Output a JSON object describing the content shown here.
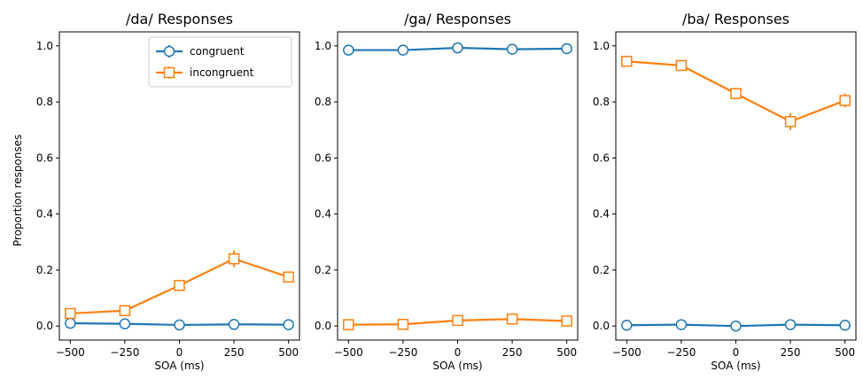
{
  "figure": {
    "ylabel": "Proportion responses",
    "legend": {
      "placement": "top-right of first panel",
      "entries": [
        {
          "label": "congruent",
          "marker": "circle",
          "color": "#1f77b4"
        },
        {
          "label": "incongruent",
          "marker": "square",
          "color": "#ff7f0e"
        }
      ]
    }
  },
  "chart_data": [
    {
      "type": "line",
      "title": "/da/ Responses",
      "xlabel": "SOA (ms)",
      "ylabel": "Proportion responses",
      "xlim": [
        -550,
        550
      ],
      "ylim": [
        -0.05,
        1.05
      ],
      "xticks": [
        "-500",
        "-250",
        "0",
        "250",
        "500"
      ],
      "yticks": [
        "0.0",
        "0.2",
        "0.4",
        "0.6",
        "0.8",
        "1.0"
      ],
      "show_ytick_labels": true,
      "x": [
        -500,
        -250,
        0,
        250,
        500
      ],
      "series": [
        {
          "name": "congruent",
          "color": "#1f77b4",
          "marker": "circle",
          "values": [
            0.01,
            0.008,
            0.004,
            0.006,
            0.005
          ],
          "errors": [
            0.006,
            0.005,
            0.004,
            0.004,
            0.004
          ]
        },
        {
          "name": "incongruent",
          "color": "#ff7f0e",
          "marker": "square",
          "values": [
            0.045,
            0.055,
            0.145,
            0.24,
            0.175
          ],
          "errors": [
            0.01,
            0.01,
            0.02,
            0.03,
            0.02
          ]
        }
      ],
      "legend": "top-right"
    },
    {
      "type": "line",
      "title": "/ga/ Responses",
      "xlabel": "SOA (ms)",
      "ylabel": "",
      "xlim": [
        -550,
        550
      ],
      "ylim": [
        -0.05,
        1.05
      ],
      "xticks": [
        "-500",
        "-250",
        "0",
        "250",
        "500"
      ],
      "yticks": [
        "0.0",
        "0.2",
        "0.4",
        "0.6",
        "0.8",
        "1.0"
      ],
      "show_ytick_labels": true,
      "x": [
        -500,
        -250,
        0,
        250,
        500
      ],
      "series": [
        {
          "name": "congruent",
          "color": "#1f77b4",
          "marker": "circle",
          "values": [
            0.985,
            0.985,
            0.993,
            0.988,
            0.99
          ],
          "errors": [
            0.005,
            0.005,
            0.004,
            0.005,
            0.005
          ]
        },
        {
          "name": "incongruent",
          "color": "#ff7f0e",
          "marker": "square",
          "values": [
            0.005,
            0.006,
            0.02,
            0.025,
            0.018
          ],
          "errors": [
            0.005,
            0.005,
            0.008,
            0.008,
            0.006
          ]
        }
      ],
      "legend": "none"
    },
    {
      "type": "line",
      "title": "/ba/ Responses",
      "xlabel": "SOA (ms)",
      "ylabel": "",
      "xlim": [
        -550,
        550
      ],
      "ylim": [
        -0.05,
        1.05
      ],
      "xticks": [
        "-500",
        "-250",
        "0",
        "250",
        "500"
      ],
      "yticks": [
        "0.0",
        "0.2",
        "0.4",
        "0.6",
        "0.8",
        "1.0"
      ],
      "show_ytick_labels": true,
      "x": [
        -500,
        -250,
        0,
        250,
        500
      ],
      "series": [
        {
          "name": "congruent",
          "color": "#1f77b4",
          "marker": "circle",
          "values": [
            0.003,
            0.005,
            0.0,
            0.005,
            0.003
          ],
          "errors": [
            0.004,
            0.004,
            0.003,
            0.004,
            0.004
          ]
        },
        {
          "name": "incongruent",
          "color": "#ff7f0e",
          "marker": "square",
          "values": [
            0.945,
            0.93,
            0.83,
            0.73,
            0.805
          ],
          "errors": [
            0.01,
            0.012,
            0.02,
            0.03,
            0.025
          ]
        }
      ],
      "legend": "none"
    }
  ]
}
